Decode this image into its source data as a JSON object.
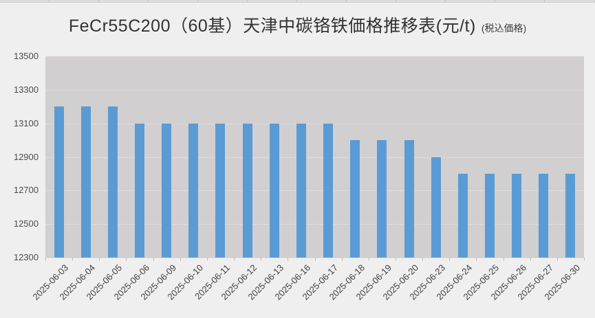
{
  "title": {
    "main": "FeCr55C200（60基）天津中碳铬铁価格推移表(元/t)",
    "sub": "(税込価格)"
  },
  "chart_data": {
    "type": "bar",
    "title": "FeCr55C200（60基）天津中碳铬铁価格推移表(元/t) (税込価格)",
    "categories": [
      "2025-06-03",
      "2025-06-04",
      "2025-06-05",
      "2025-06-06",
      "2025-06-09",
      "2025-06-10",
      "2025-06-11",
      "2025-06-12",
      "2025-06-13",
      "2025-06-16",
      "2025-06-17",
      "2025-06-18",
      "2025-06-19",
      "2025-06-20",
      "2025-06-23",
      "2025-06-24",
      "2025-06-25",
      "2025-06-26",
      "2025-06-27",
      "2025-06-30"
    ],
    "values": [
      13200,
      13200,
      13200,
      13100,
      13100,
      13100,
      13100,
      13100,
      13100,
      13100,
      13100,
      13000,
      13000,
      13000,
      12900,
      12800,
      12800,
      12800,
      12800,
      12800
    ],
    "xlabel": "",
    "ylabel": "",
    "ylim": [
      12300,
      13500
    ],
    "yticks": [
      13500,
      13300,
      13100,
      12900,
      12700,
      12500,
      12300
    ],
    "ytick_interval": 200,
    "grid": true,
    "legend_position": "none",
    "bar_color": "#5b9bd5",
    "plot_background": "#d1cfcf",
    "page_background": "#f0efef",
    "gridline_color": "#dedcdc"
  }
}
